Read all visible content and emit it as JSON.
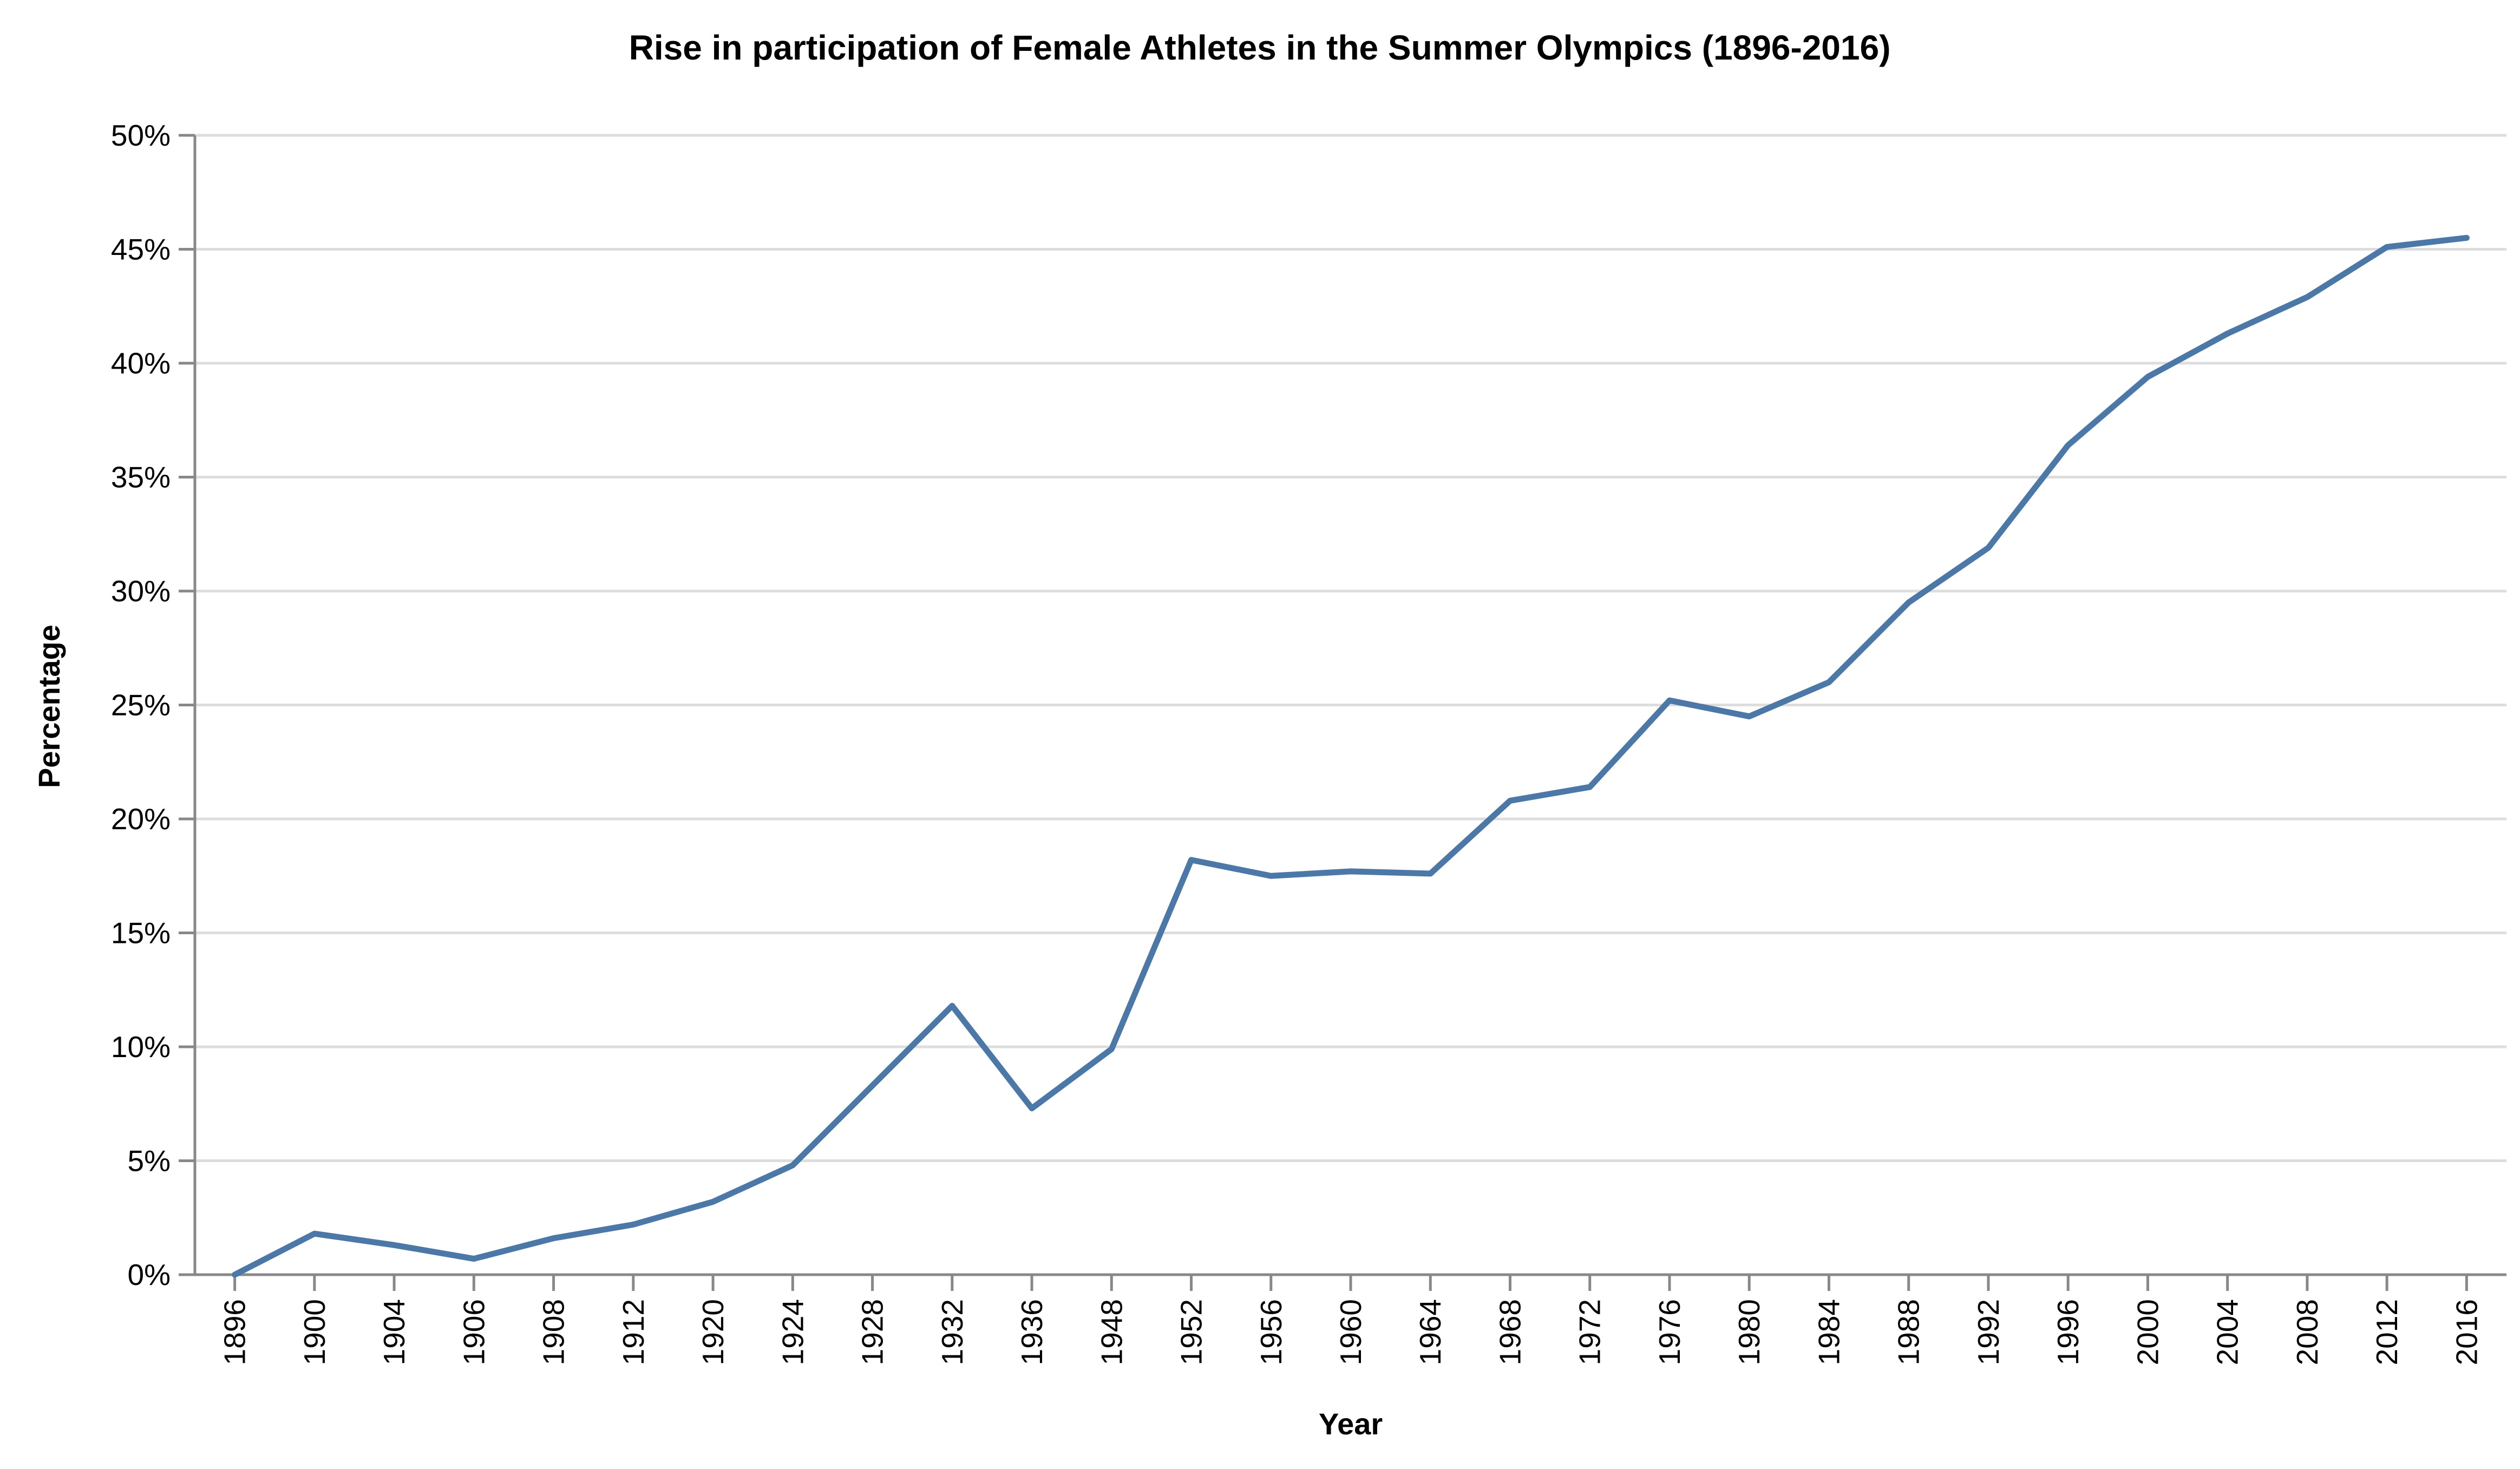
{
  "chart_data": {
    "type": "line",
    "title": "Rise in participation of Female Athletes in the Summer Olympics (1896-2016)",
    "xlabel": "Year",
    "ylabel": "Percentage",
    "x_scale": "ordinal",
    "ylim": [
      0,
      0.5
    ],
    "y_ticks": [
      0,
      0.05,
      0.1,
      0.15,
      0.2,
      0.25,
      0.3,
      0.35,
      0.4,
      0.45,
      0.5
    ],
    "y_tick_labels": [
      "0%",
      "5%",
      "10%",
      "15%",
      "20%",
      "25%",
      "30%",
      "35%",
      "40%",
      "45%",
      "50%"
    ],
    "grid": true,
    "categories": [
      "1896",
      "1900",
      "1904",
      "1906",
      "1908",
      "1912",
      "1920",
      "1924",
      "1928",
      "1932",
      "1936",
      "1948",
      "1952",
      "1956",
      "1960",
      "1964",
      "1968",
      "1972",
      "1976",
      "1980",
      "1984",
      "1988",
      "1992",
      "1996",
      "2000",
      "2004",
      "2008",
      "2012",
      "2016"
    ],
    "series": [
      {
        "color": "#4c78a8",
        "values": [
          0.0,
          0.018,
          0.013,
          0.007,
          0.016,
          0.022,
          0.032,
          0.048,
          0.083,
          0.118,
          0.073,
          0.099,
          0.182,
          0.175,
          0.177,
          0.176,
          0.208,
          0.214,
          0.252,
          0.245,
          0.26,
          0.295,
          0.319,
          0.364,
          0.394,
          0.413,
          0.429,
          0.451,
          0.455
        ]
      }
    ]
  }
}
